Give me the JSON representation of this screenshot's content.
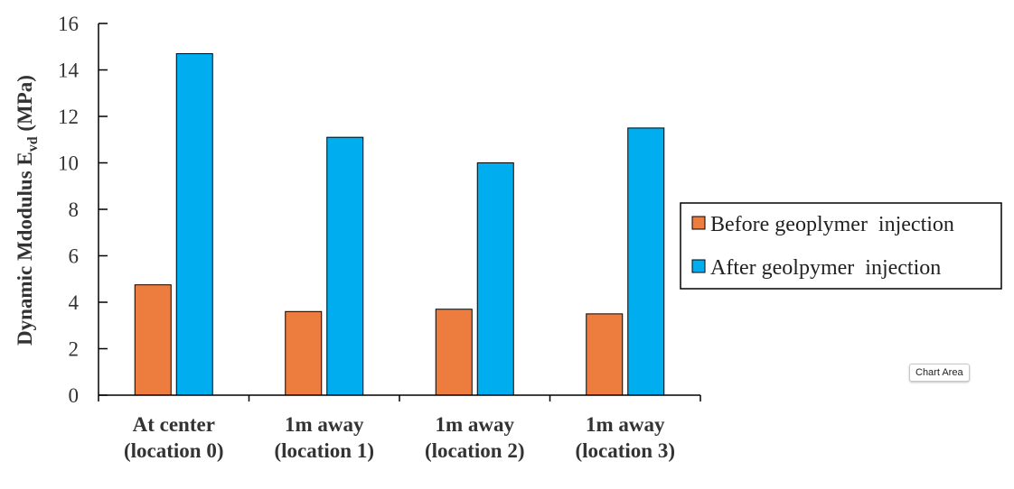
{
  "chart_data": {
    "type": "bar",
    "categories": [
      [
        "At center",
        "(location 0)"
      ],
      [
        "1m away",
        "(location 1)"
      ],
      [
        "1m away",
        "(location 2)"
      ],
      [
        "1m away",
        "(location 3)"
      ]
    ],
    "series": [
      {
        "name": "Before geoplymer  injection",
        "color": "#ed7d3f",
        "values": [
          4.75,
          3.6,
          3.7,
          3.5
        ]
      },
      {
        "name": "After geolpymer  injection",
        "color": "#00aeef",
        "values": [
          14.7,
          11.1,
          10.0,
          11.5
        ]
      }
    ],
    "ylabel_main": "Dynamic Mdodulus E",
    "ylabel_sub": "vd",
    "ylabel_unit": " (MPa)",
    "ylim": [
      0,
      16
    ],
    "yticks": [
      0,
      2,
      4,
      6,
      8,
      10,
      12,
      14,
      16
    ],
    "grid": false,
    "legend_position": "right"
  },
  "tooltip": {
    "label": "Chart Area"
  }
}
